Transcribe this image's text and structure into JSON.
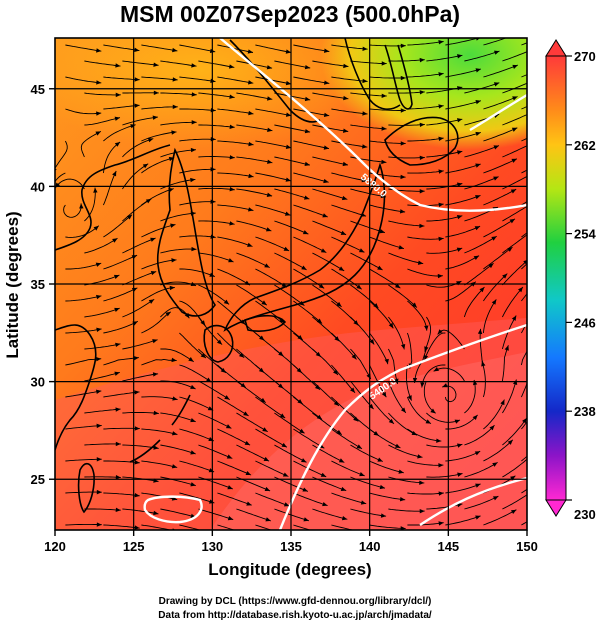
{
  "title": "MSM 00Z07Sep2023 (500.0hPa)",
  "xlabel": "Longitude (degrees)",
  "ylabel": "Latitude  (degrees)",
  "credits": [
    "Drawing by DCL (https://www.gfd-dennou.org/library/dcl/)",
    "Data from http://database.rish.kyoto-u.ac.jp/arch/jmadata/"
  ],
  "map": {
    "lon_range": [
      120,
      150
    ],
    "lat_range": [
      22.4,
      47.6
    ],
    "lon_ticks": [
      "120",
      "125",
      "130",
      "135",
      "140",
      "145",
      "150"
    ],
    "lat_ticks": [
      "25",
      "30",
      "35",
      "40",
      "45"
    ],
    "grid": true,
    "field": "temperature (K)",
    "contours": [
      {
        "label": "5880.0"
      },
      {
        "label": "5400.0"
      }
    ]
  },
  "colorbar": {
    "range": [
      230,
      270
    ],
    "tick_labels": [
      "270",
      "262",
      "254",
      "246",
      "238",
      "230"
    ],
    "colors": [
      "#ff3a3a",
      "#ff8a1a",
      "#ffc414",
      "#b4e614",
      "#20d040",
      "#10c8c8",
      "#1478ff",
      "#1428c8",
      "#8c14c8",
      "#ff28d2"
    ]
  }
}
